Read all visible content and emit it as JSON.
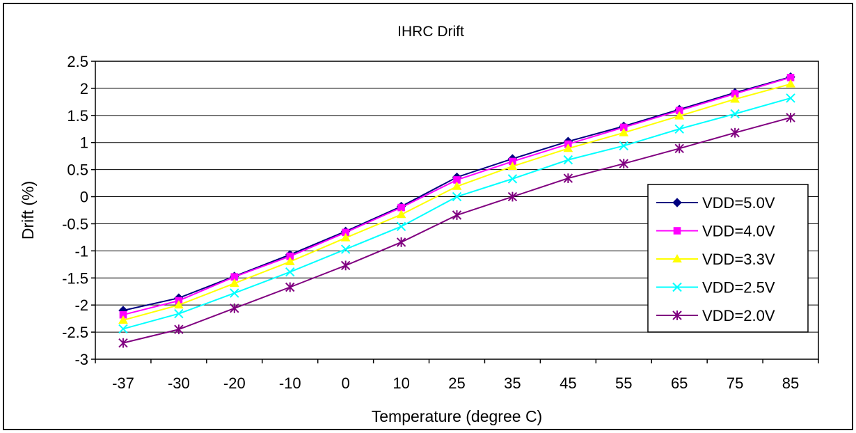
{
  "chart_data": {
    "type": "line",
    "title": "IHRC Drift",
    "xlabel": "Temperature (degree C)",
    "ylabel": "Drift (%)",
    "categories": [
      "-37",
      "-30",
      "-20",
      "-10",
      "0",
      "10",
      "25",
      "35",
      "45",
      "55",
      "65",
      "75",
      "85"
    ],
    "ylim": [
      -3,
      2.5
    ],
    "yticks": [
      "2.5",
      "2",
      "1.5",
      "1",
      "0.5",
      "0",
      "-0.5",
      "-1",
      "-1.5",
      "-2",
      "-2.5",
      "-3"
    ],
    "grid": true,
    "legend_position": "right",
    "series": [
      {
        "name": "VDD=5.0V",
        "color": "#000080",
        "marker": "diamond",
        "values": [
          -2.1,
          -1.87,
          -1.47,
          -1.07,
          -0.64,
          -0.18,
          0.36,
          0.7,
          1.02,
          1.3,
          1.61,
          1.92,
          2.21
        ]
      },
      {
        "name": "VDD=4.0V",
        "color": "#ff00ff",
        "marker": "square",
        "values": [
          -2.18,
          -1.92,
          -1.48,
          -1.1,
          -0.66,
          -0.2,
          0.31,
          0.65,
          0.97,
          1.28,
          1.59,
          1.9,
          2.2
        ]
      },
      {
        "name": "VDD=3.3V",
        "color": "#ffff00",
        "marker": "triangle",
        "values": [
          -2.28,
          -2.0,
          -1.6,
          -1.2,
          -0.76,
          -0.33,
          0.19,
          0.56,
          0.89,
          1.18,
          1.49,
          1.8,
          2.08
        ]
      },
      {
        "name": "VDD=2.5V",
        "color": "#00ffff",
        "marker": "x",
        "values": [
          -2.44,
          -2.16,
          -1.78,
          -1.39,
          -0.97,
          -0.55,
          0.0,
          0.33,
          0.68,
          0.94,
          1.25,
          1.53,
          1.82
        ]
      },
      {
        "name": "VDD=2.0V",
        "color": "#800080",
        "marker": "star",
        "values": [
          -2.7,
          -2.45,
          -2.06,
          -1.67,
          -1.27,
          -0.84,
          -0.34,
          0.0,
          0.34,
          0.61,
          0.89,
          1.18,
          1.46
        ]
      }
    ]
  }
}
